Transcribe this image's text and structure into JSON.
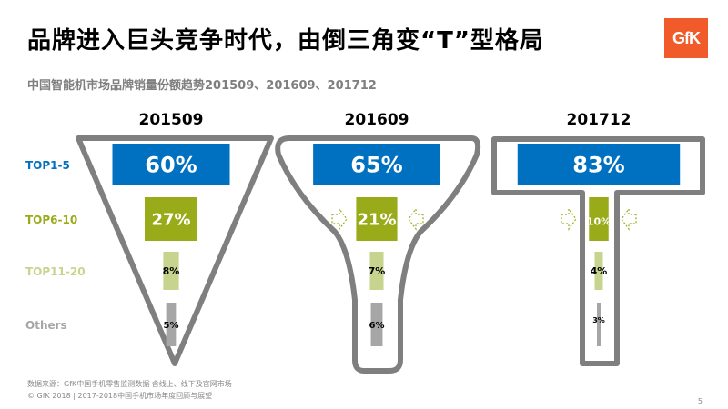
{
  "header": {
    "title": "品牌进入巨头竞争时代，由倒三角变“T”型格局",
    "logo_text": "GfK",
    "subtitle": "中国智能机市场品牌销量份额趋势201509、201609、201712"
  },
  "colors": {
    "top1_5": "#0070c0",
    "top6_10": "#9aab1a",
    "top11_20": "#c6d48e",
    "others": "#a6a6a6",
    "outline": "#7f7f7f",
    "label_top1_5": "#0070c0",
    "label_top6_10": "#9aab1a",
    "label_top11_20": "#c6d48e",
    "label_others": "#a6a6a6"
  },
  "chart_data": {
    "type": "bar",
    "categories": [
      "TOP1-5",
      "TOP6-10",
      "TOP11-20",
      "Others"
    ],
    "series": [
      {
        "name": "201509",
        "values": [
          60,
          27,
          8,
          5
        ],
        "labels": [
          "60%",
          "27%",
          "8%",
          "5%"
        ]
      },
      {
        "name": "201609",
        "values": [
          65,
          21,
          7,
          6
        ],
        "labels": [
          "65%",
          "21%",
          "7%",
          "6%"
        ]
      },
      {
        "name": "201712",
        "values": [
          83,
          10,
          4,
          3
        ],
        "labels": [
          "83%",
          "10%",
          "4%",
          "3%"
        ]
      }
    ],
    "ylim": [
      0,
      100
    ],
    "grid": false
  },
  "footer": {
    "source": "数据来源：GfK中国手机零售监测数据 含线上、线下及官网市场",
    "copyright": "© GfK 2018 | 2017-2018中国手机市场年度回顾与展望",
    "page_number": "5"
  }
}
